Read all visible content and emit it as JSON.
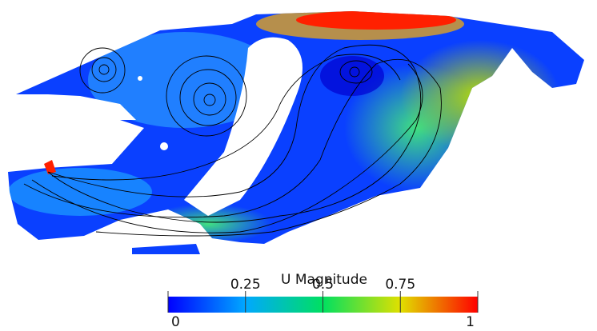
{
  "colorbar": {
    "title": "U Magnitude",
    "range": [
      0,
      1
    ],
    "ticks": [
      0,
      0.25,
      0.5,
      0.75,
      1
    ]
  }
}
